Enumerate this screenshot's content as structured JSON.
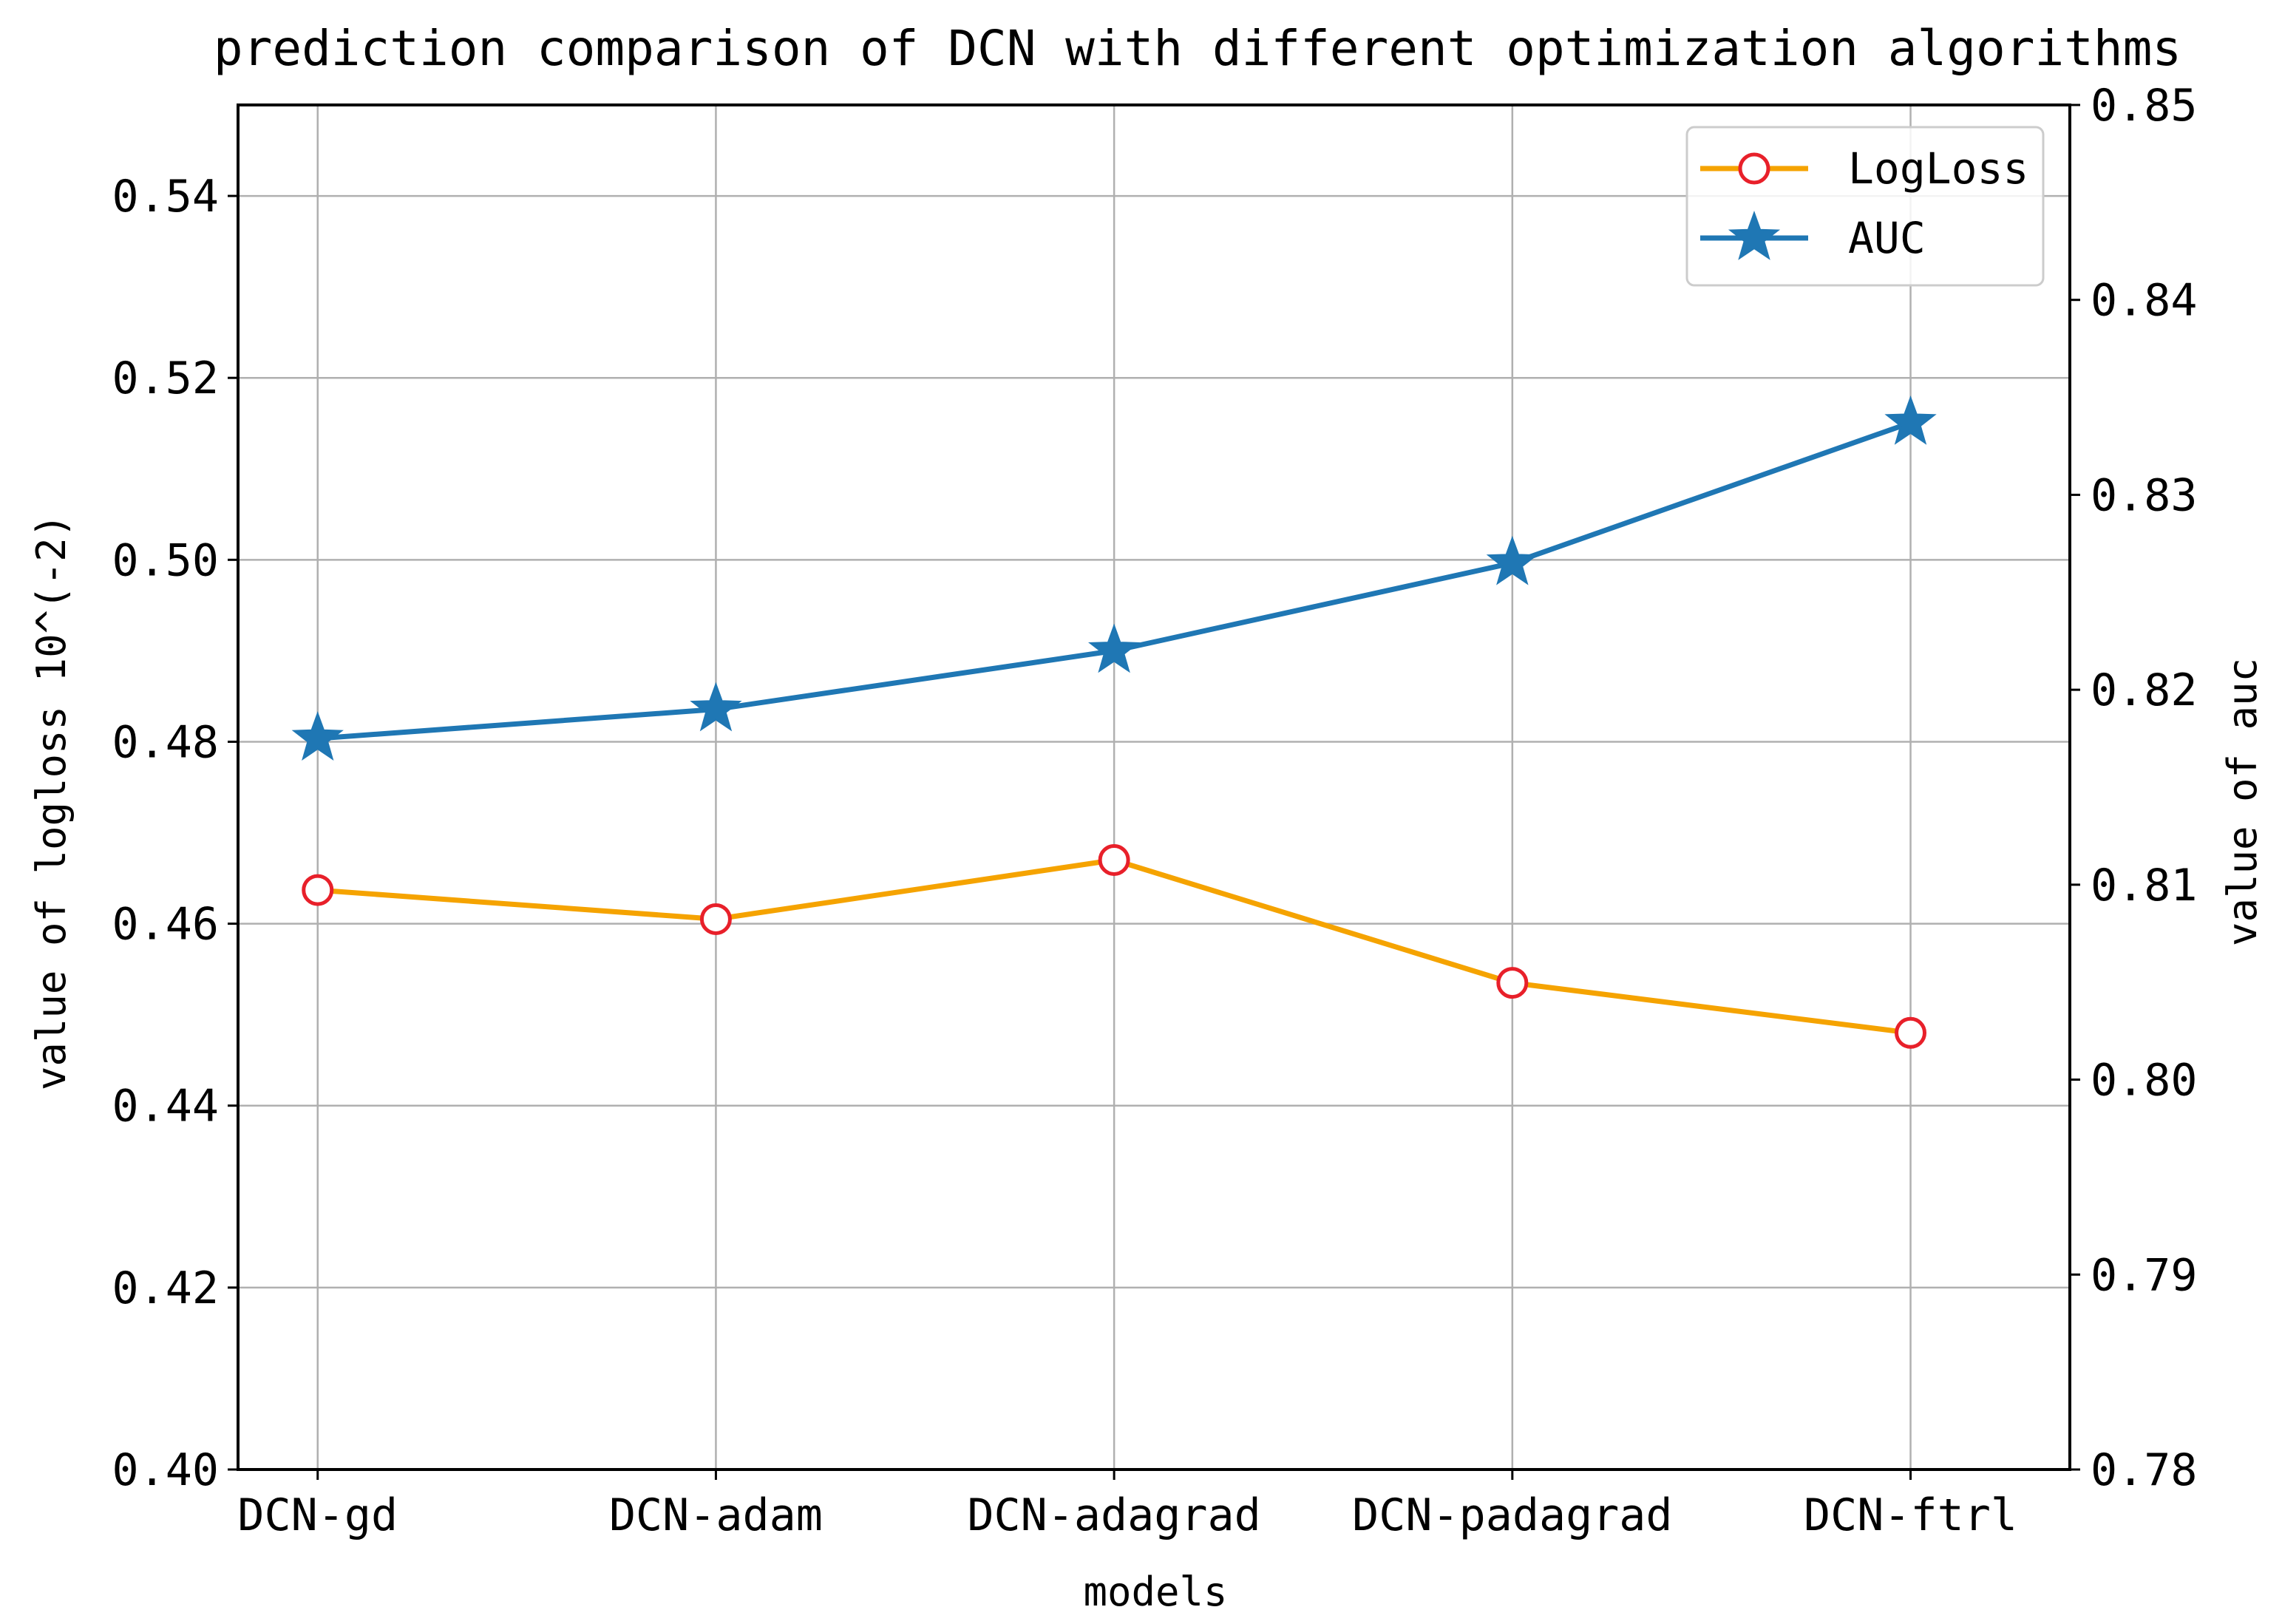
{
  "chart_data": {
    "type": "line",
    "title": "prediction comparison of DCN with different optimization algorithms",
    "xlabel": "models",
    "ylabel_left": "value of logloss 10^(-2)",
    "ylabel_right": "value of auc",
    "categories": [
      "DCN-gd",
      "DCN-adam",
      "DCN-adagrad",
      "DCN-padagrad",
      "DCN-ftrl"
    ],
    "ylim_left": [
      0.4,
      0.55
    ],
    "yticks_left": [
      "0.40",
      "0.42",
      "0.44",
      "0.46",
      "0.48",
      "0.50",
      "0.52",
      "0.54"
    ],
    "ylim_right": [
      0.78,
      0.85
    ],
    "yticks_right": [
      "0.78",
      "0.79",
      "0.80",
      "0.81",
      "0.82",
      "0.83",
      "0.84",
      "0.85"
    ],
    "grid": true,
    "legend_position": "top-right",
    "series": [
      {
        "name": "LogLoss",
        "axis": "left",
        "marker": "circle",
        "color": "#f5a300",
        "marker_edge": "#e8202a",
        "values": [
          0.4637,
          0.4605,
          0.467,
          0.4535,
          0.448
        ]
      },
      {
        "name": "AUC",
        "axis": "right",
        "marker": "star",
        "color": "#1f77b4",
        "values": [
          0.8175,
          0.819,
          0.822,
          0.8265,
          0.8337
        ]
      }
    ]
  }
}
